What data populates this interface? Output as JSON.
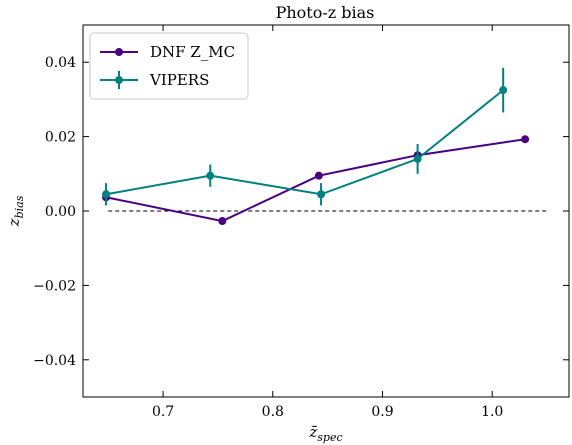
{
  "chart_data": {
    "type": "line",
    "title": "Photo-z bias",
    "xlabel": "z̄spec",
    "ylabel": "zbias",
    "xlim": [
      0.627,
      1.07
    ],
    "ylim": [
      -0.05,
      0.05
    ],
    "x_ticks": [
      0.7,
      0.8,
      0.9,
      1.0
    ],
    "x_tick_labels": [
      "0.7",
      "0.8",
      "0.9",
      "1.0"
    ],
    "y_ticks": [
      -0.04,
      -0.02,
      0.0,
      0.02,
      0.04
    ],
    "y_tick_labels": [
      "−0.04",
      "−0.02",
      "0.00",
      "0.02",
      "0.04"
    ],
    "legend_position": "top-left",
    "reference_line": {
      "y": 0.0,
      "x_range": [
        0.65,
        1.05
      ],
      "style": "dashed",
      "color": "#000000"
    },
    "series": [
      {
        "name": "DNF Z_MC",
        "color": "#4b0082",
        "x": [
          0.648,
          0.754,
          0.842,
          0.932,
          1.03
        ],
        "y": [
          0.0037,
          -0.0027,
          0.0095,
          0.015,
          0.0193
        ]
      },
      {
        "name": "VIPERS",
        "color": "#00807f",
        "x": [
          0.648,
          0.743,
          0.844,
          0.932,
          1.01
        ],
        "y": [
          0.0045,
          0.0095,
          0.0045,
          0.014,
          0.0325
        ],
        "yerr": [
          0.003,
          0.003,
          0.003,
          0.004,
          0.006
        ]
      }
    ]
  }
}
